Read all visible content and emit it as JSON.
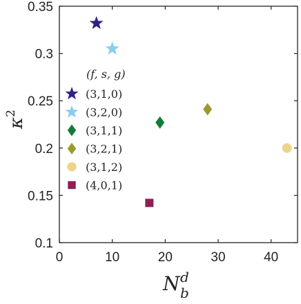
{
  "chart_data": {
    "type": "scatter",
    "xlim": [
      0,
      45
    ],
    "ylim": [
      0.1,
      0.35
    ],
    "x_ticks": [
      0,
      10,
      20,
      30,
      40
    ],
    "y_ticks": [
      0.1,
      0.15,
      0.2,
      0.25,
      0.3,
      0.35
    ],
    "x_tick_labels": [
      "0",
      "10",
      "20",
      "30",
      "40"
    ],
    "y_tick_labels": [
      "0.1",
      "0.15",
      "0.2",
      "0.25",
      "0.3",
      "0.35"
    ],
    "xlabel": {
      "base": "N",
      "sub": "b",
      "sup": "d"
    },
    "ylabel": {
      "base": "κ",
      "sup": "2"
    },
    "legend_title": "(f, s, g)",
    "legend_position": "left",
    "grid": false,
    "series": [
      {
        "name": "(3,1,0)",
        "marker": "star",
        "color": "#2e2486",
        "x": 7,
        "y": 0.332
      },
      {
        "name": "(3,2,0)",
        "marker": "star",
        "color": "#87ceeb",
        "x": 10,
        "y": 0.305
      },
      {
        "name": "(3,1,1)",
        "marker": "diamond",
        "color": "#137b38",
        "x": 19,
        "y": 0.227
      },
      {
        "name": "(3,2,1)",
        "marker": "diamond",
        "color": "#9a9a30",
        "x": 28,
        "y": 0.241
      },
      {
        "name": "(3,1,2)",
        "marker": "circle",
        "color": "#ead58a",
        "x": 43,
        "y": 0.2
      },
      {
        "name": "(4,0,1)",
        "marker": "square",
        "color": "#8f1f52",
        "x": 17,
        "y": 0.142
      }
    ]
  }
}
